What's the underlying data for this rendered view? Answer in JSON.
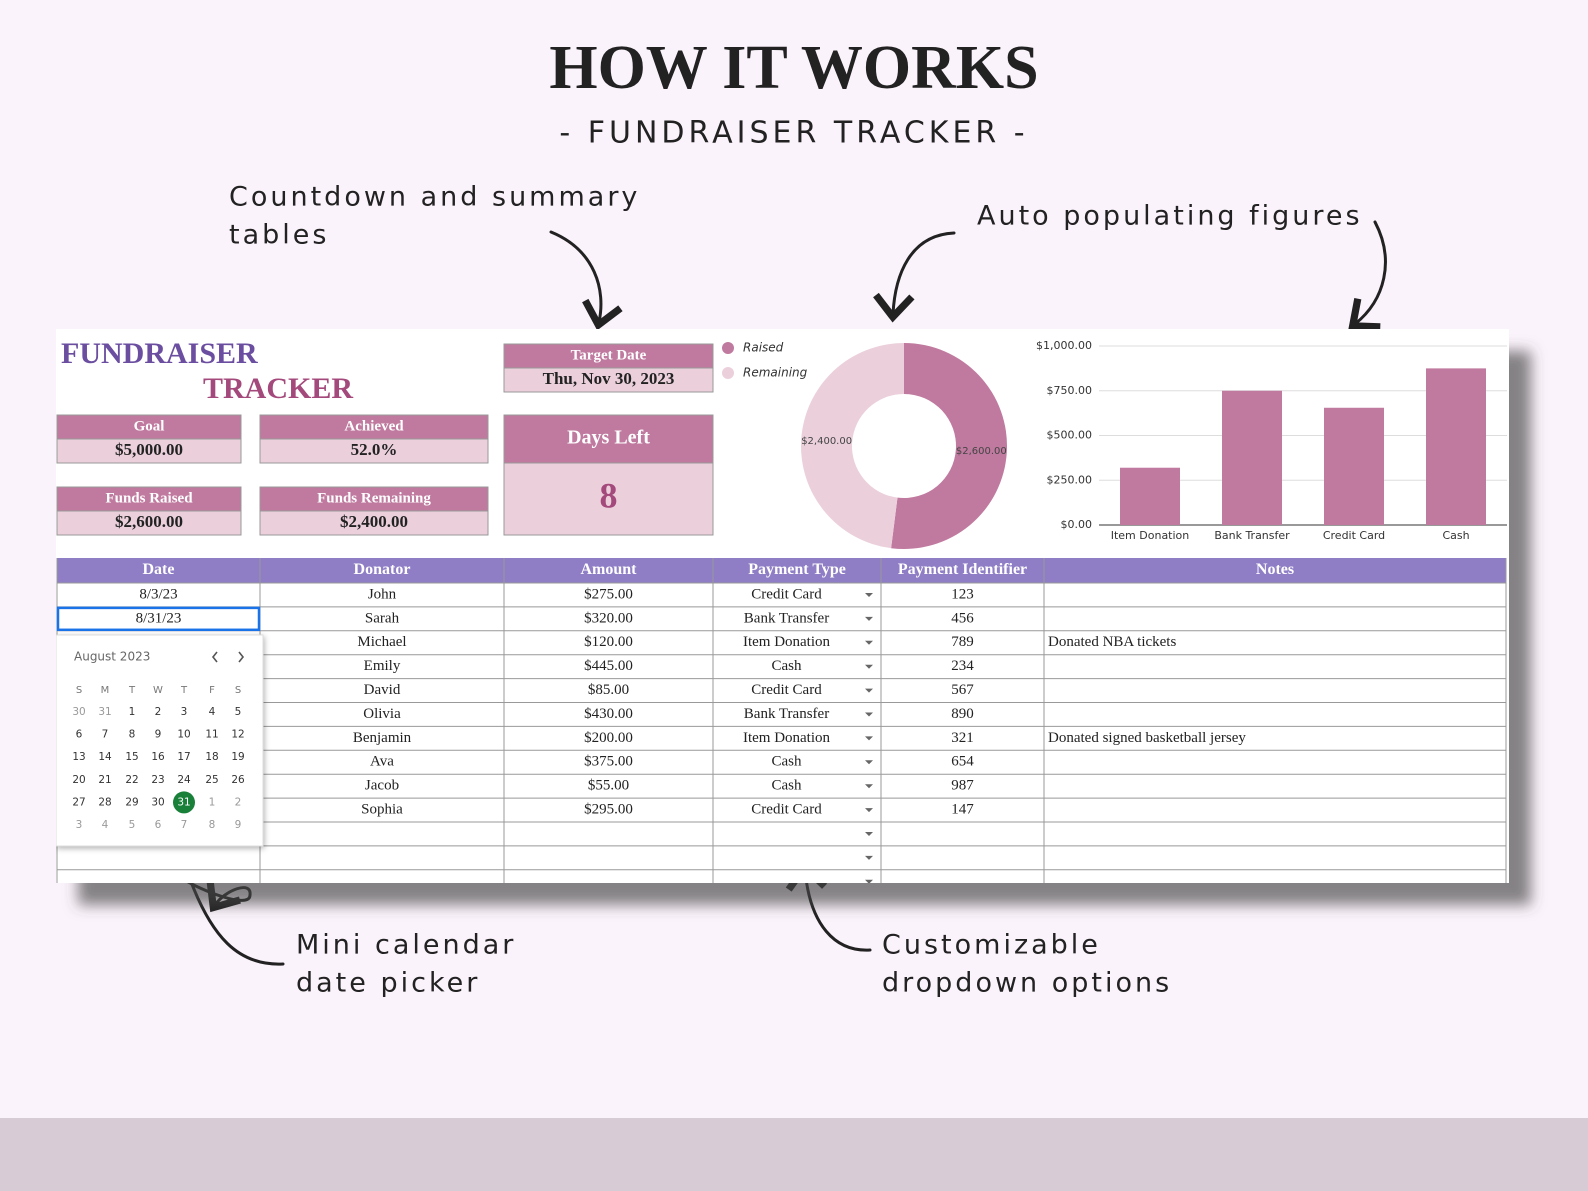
{
  "header": {
    "title": "HOW IT WORKS",
    "subtitle": "- FUNDRAISER TRACKER -"
  },
  "annotations": [
    {
      "lines": [
        "Countdown and summary",
        "tables"
      ]
    },
    {
      "lines": [
        "Auto populating figures"
      ]
    },
    {
      "lines": [
        "Mini calendar",
        "date picker"
      ]
    },
    {
      "lines": [
        "Customizable",
        "dropdown options"
      ]
    }
  ],
  "sheet": {
    "title_lines": [
      "FUNDRAISER",
      "TRACKER"
    ],
    "summary": [
      {
        "label": "Goal",
        "value": "$5,000.00"
      },
      {
        "label": "Achieved",
        "value": "52.0%"
      },
      {
        "label": "Funds Raised",
        "value": "$2,600.00"
      },
      {
        "label": "Funds Remaining",
        "value": "$2,400.00"
      }
    ],
    "target_date": {
      "label": "Target Date",
      "value": "Thu, Nov 30, 2023"
    },
    "days_left": {
      "label": "Days Left",
      "value": 8
    },
    "table": {
      "columns": [
        "Date",
        "Donator",
        "Amount",
        "Payment Type",
        "Payment Identifier",
        "Notes"
      ],
      "rows": [
        [
          "8/3/23",
          "John",
          "$275.00",
          "Credit Card",
          "123",
          null
        ],
        [
          "8/31/23",
          "Sarah",
          "$320.00",
          "Bank Transfer",
          "456",
          null
        ],
        [
          null,
          "Michael",
          "$120.00",
          "Item Donation",
          "789",
          "Donated NBA tickets"
        ],
        [
          null,
          "Emily",
          "$445.00",
          "Cash",
          "234",
          null
        ],
        [
          null,
          "David",
          "$85.00",
          "Credit Card",
          "567",
          null
        ],
        [
          null,
          "Olivia",
          "$430.00",
          "Bank Transfer",
          "890",
          null
        ],
        [
          null,
          "Benjamin",
          "$200.00",
          "Item Donation",
          "321",
          "Donated signed basketball jersey"
        ],
        [
          null,
          "Ava",
          "$375.00",
          "Cash",
          "654",
          null
        ],
        [
          null,
          "Jacob",
          "$55.00",
          "Cash",
          "987",
          null
        ],
        [
          null,
          "Sophia",
          "$295.00",
          "Credit Card",
          "147",
          null
        ]
      ]
    },
    "calendar": {
      "month": "August 2023",
      "weekdays": [
        "S",
        "M",
        "T",
        "W",
        "T",
        "F",
        "S"
      ],
      "weeks": [
        [
          30,
          31,
          1,
          2,
          3,
          4,
          5
        ],
        [
          6,
          7,
          8,
          9,
          10,
          11,
          12
        ],
        [
          13,
          14,
          15,
          16,
          17,
          18,
          19
        ],
        [
          20,
          21,
          22,
          23,
          24,
          25,
          26
        ],
        [
          27,
          28,
          29,
          30,
          31,
          1,
          2
        ],
        [
          3,
          4,
          5,
          6,
          7,
          8,
          9
        ]
      ],
      "selected_day": 31
    }
  },
  "chart_data": [
    {
      "type": "pie",
      "categories": [
        "Raised",
        "Remaining"
      ],
      "values": [
        2600,
        2400
      ],
      "value_labels": [
        "$2,600.00",
        "$2,400.00"
      ],
      "colors": [
        "#c07a9f",
        "#ebd0dc"
      ],
      "legend": "top-left"
    },
    {
      "type": "bar",
      "categories": [
        "Item Donation",
        "Bank Transfer",
        "Credit Card",
        "Cash"
      ],
      "values": [
        320,
        750,
        655,
        875
      ],
      "color": "#c07a9f",
      "ylim": [
        0,
        1000
      ],
      "yticks": [
        {
          "value": 0,
          "label": "$0.00"
        },
        {
          "value": 250,
          "label": "$250.00"
        },
        {
          "value": 500,
          "label": "$500.00"
        },
        {
          "value": 750,
          "label": "$750.00"
        },
        {
          "value": 1000,
          "label": "$1,000.00"
        }
      ],
      "grid": true
    }
  ]
}
